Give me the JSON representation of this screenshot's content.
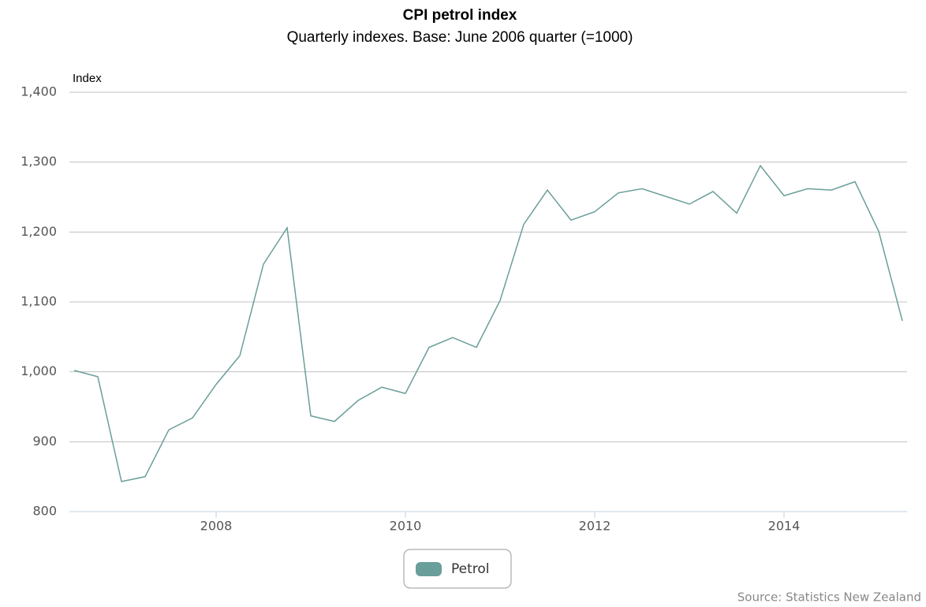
{
  "chart_data": {
    "type": "line",
    "title": "CPI petrol index",
    "subtitle": "Quarterly indexes. Base: June 2006 quarter (=1000)",
    "y_label": "Index",
    "source": "Source: Statistics New Zealand",
    "x": [
      2006.5,
      2006.75,
      2007,
      2007.25,
      2007.5,
      2007.75,
      2008,
      2008.25,
      2008.5,
      2008.75,
      2009,
      2009.25,
      2009.5,
      2009.75,
      2010,
      2010.25,
      2010.5,
      2010.75,
      2011,
      2011.25,
      2011.5,
      2011.75,
      2012,
      2012.25,
      2012.5,
      2012.75,
      2013,
      2013.25,
      2013.5,
      2013.75,
      2014,
      2014.25,
      2014.5,
      2014.75,
      2015,
      2015.25
    ],
    "series": [
      {
        "name": "Petrol",
        "color": "#6a9e9a",
        "values": [
          1002,
          993,
          843,
          850,
          917,
          934,
          982,
          1023,
          1154,
          1206,
          937,
          929,
          959,
          978,
          969,
          1035,
          1049,
          1035,
          1102,
          1211,
          1260,
          1217,
          1229,
          1256,
          1262,
          1251,
          1240,
          1258,
          1227,
          1295,
          1252,
          1262,
          1260,
          1272,
          1201,
          1073
        ]
      }
    ],
    "xlim": [
      2006.45,
      2015.3
    ],
    "xticks": [
      2008,
      2010,
      2012,
      2014
    ],
    "ylim": [
      800,
      1400
    ],
    "yticks": [
      800,
      900,
      {
        "value": 1000,
        "label": "1,000"
      },
      {
        "value": 1100,
        "label": "1,100"
      },
      {
        "value": 1200,
        "label": "1,200"
      },
      {
        "value": 1300,
        "label": "1,300"
      },
      {
        "value": 1400,
        "label": "1,400"
      }
    ],
    "grid": true,
    "legend": "bottom"
  }
}
